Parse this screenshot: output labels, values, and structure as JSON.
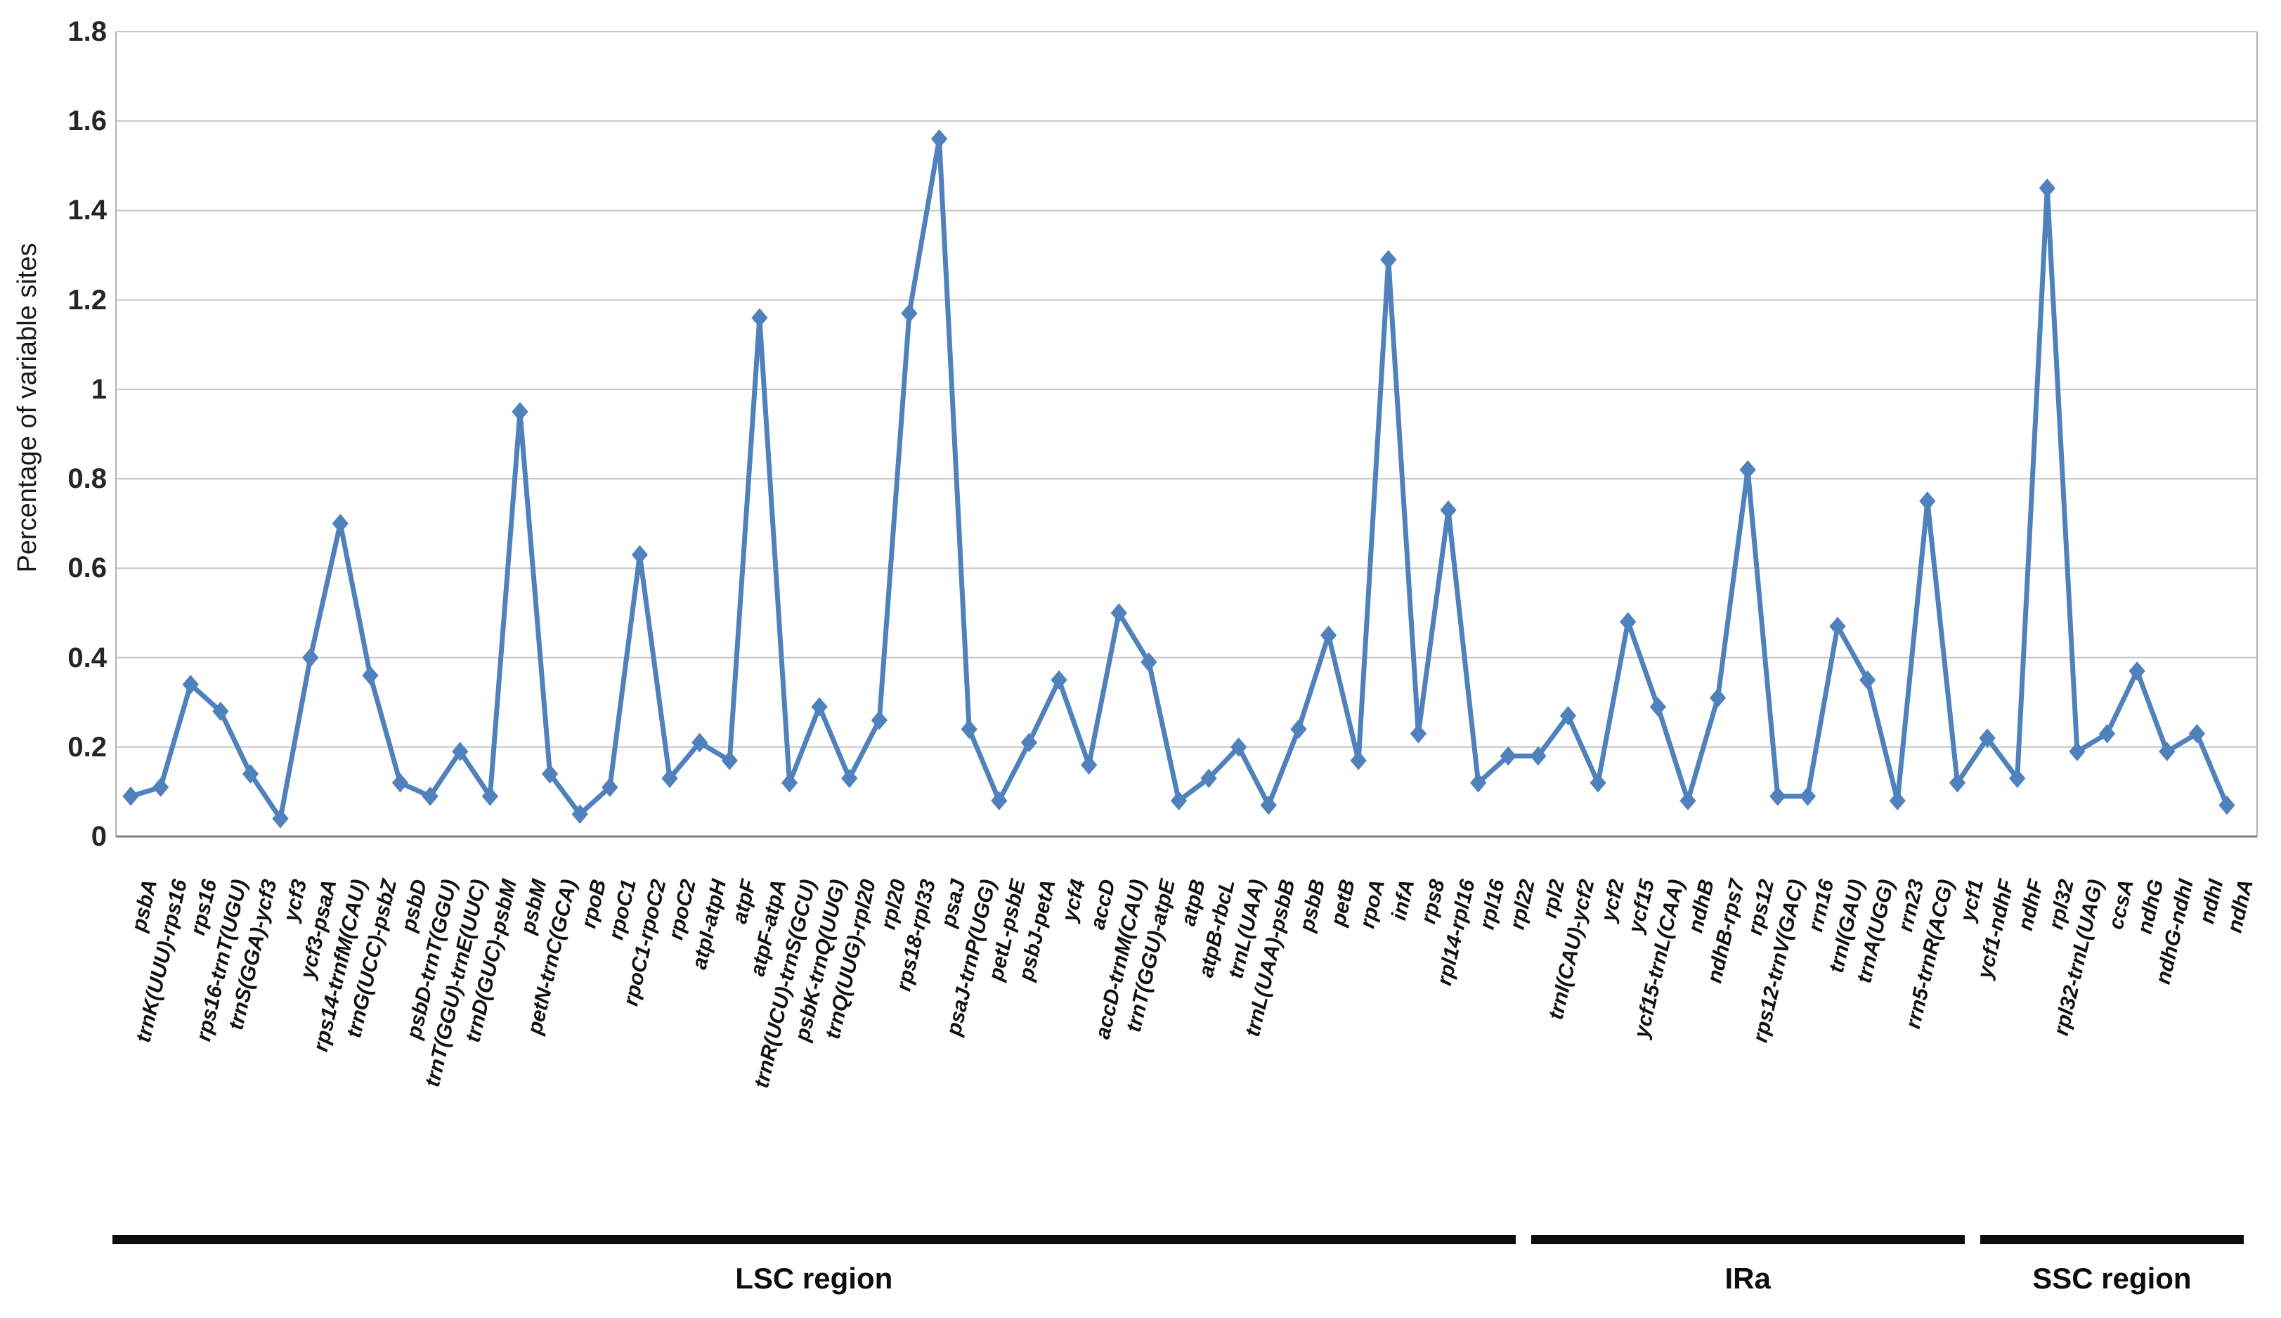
{
  "chart_data": {
    "type": "line",
    "title": "",
    "ylabel": "Percentage of variable sites",
    "xlabel": "",
    "ylim": [
      0,
      1.8
    ],
    "yticks": [
      "0",
      "0.2",
      "0.4",
      "0.6",
      "0.8",
      "1",
      "1.2",
      "1.4",
      "1.6",
      "1.8"
    ],
    "ytick_values": [
      0,
      0.2,
      0.4,
      0.6,
      0.8,
      1.0,
      1.2,
      1.4,
      1.6,
      1.8
    ],
    "grid": "horizontal",
    "legend": "none",
    "marker": "diamond",
    "line_color": "#4F81BD",
    "gridline_color": "#c6c6c6",
    "axis_color": "#808080",
    "frame_color": "#b3b3b3",
    "categories": [
      "psbA",
      "trnK(UUU)-rps16",
      "rps16",
      "rps16-trnT(UGU)",
      "trnS(GGA)-ycf3",
      "ycf3",
      "ycf3-psaA",
      "rps14-trnfM(CAU)",
      "trnG(UCC)-psbZ",
      "psbD",
      "psbD-trnT(GGU)",
      "trnT(GGU)-trnE(UUC)",
      "trnD(GUC)-psbM",
      "psbM",
      "petN-trnC(GCA)",
      "rpoB",
      "rpoC1",
      "rpoC1-rpoC2",
      "rpoC2",
      "atpI-atpH",
      "atpF",
      "atpF-atpA",
      "trnR(UCU)-trnS(GCU)",
      "psbK-trnQ(UUG)",
      "trnQ(UUG)-rpl20",
      "rpl20",
      "rps18-rpl33",
      "psaJ",
      "psaJ-trnP(UGG)",
      "petL-psbE",
      "psbJ-petA",
      "ycf4",
      "accD",
      "accD-trnM(CAU)",
      "trnT(GGU)-atpE",
      "atpB",
      "atpB-rbcL",
      "trnL(UAA)",
      "trnL(UAA)-psbB",
      "psbB",
      "petB",
      "rpoA",
      "infA",
      "rps8",
      "rpl14-rpl16",
      "rpl16",
      "rpl22",
      "rpl2",
      "trnI(CAU)-ycf2",
      "ycf2",
      "ycf15",
      "ycf15-trnL(CAA)",
      "ndhB",
      "ndhB-rps7",
      "rps12",
      "rps12-trnV(GAC)",
      "rrn16",
      "trnI(GAU)",
      "trnA(UGG)",
      "rrn23",
      "rrn5-trnR(ACG)",
      "ycf1",
      "ycf1-ndhF",
      "ndhF",
      "rpl32",
      "rpl32-trnL(UAG)",
      "ccsA",
      "ndhG",
      "ndhG-ndhI",
      "ndhI",
      "ndhA"
    ],
    "values": [
      0.09,
      0.11,
      0.34,
      0.28,
      0.14,
      0.04,
      0.4,
      0.7,
      0.36,
      0.12,
      0.09,
      0.19,
      0.09,
      0.95,
      0.14,
      0.05,
      0.11,
      0.63,
      0.13,
      0.21,
      0.17,
      1.16,
      0.12,
      0.29,
      0.13,
      0.26,
      1.17,
      1.56,
      0.24,
      0.08,
      0.21,
      0.35,
      0.16,
      0.5,
      0.39,
      0.08,
      0.13,
      0.2,
      0.07,
      0.24,
      0.45,
      0.17,
      1.29,
      0.23,
      0.73,
      0.12,
      0.18,
      0.18,
      0.27,
      0.12,
      0.48,
      0.29,
      0.08,
      0.31,
      0.82,
      0.09,
      0.09,
      0.47,
      0.35,
      0.08,
      0.75,
      0.12,
      0.22,
      0.13,
      1.45,
      0.19,
      0.23,
      0.37,
      0.19,
      0.23,
      0.07
    ],
    "regions": [
      {
        "label": "LSC region",
        "start_index": 0,
        "end_index": 46
      },
      {
        "label": "IRa",
        "start_index": 47,
        "end_index": 61
      },
      {
        "label": "SSC region",
        "start_index": 62,
        "end_index": 70
      }
    ]
  }
}
